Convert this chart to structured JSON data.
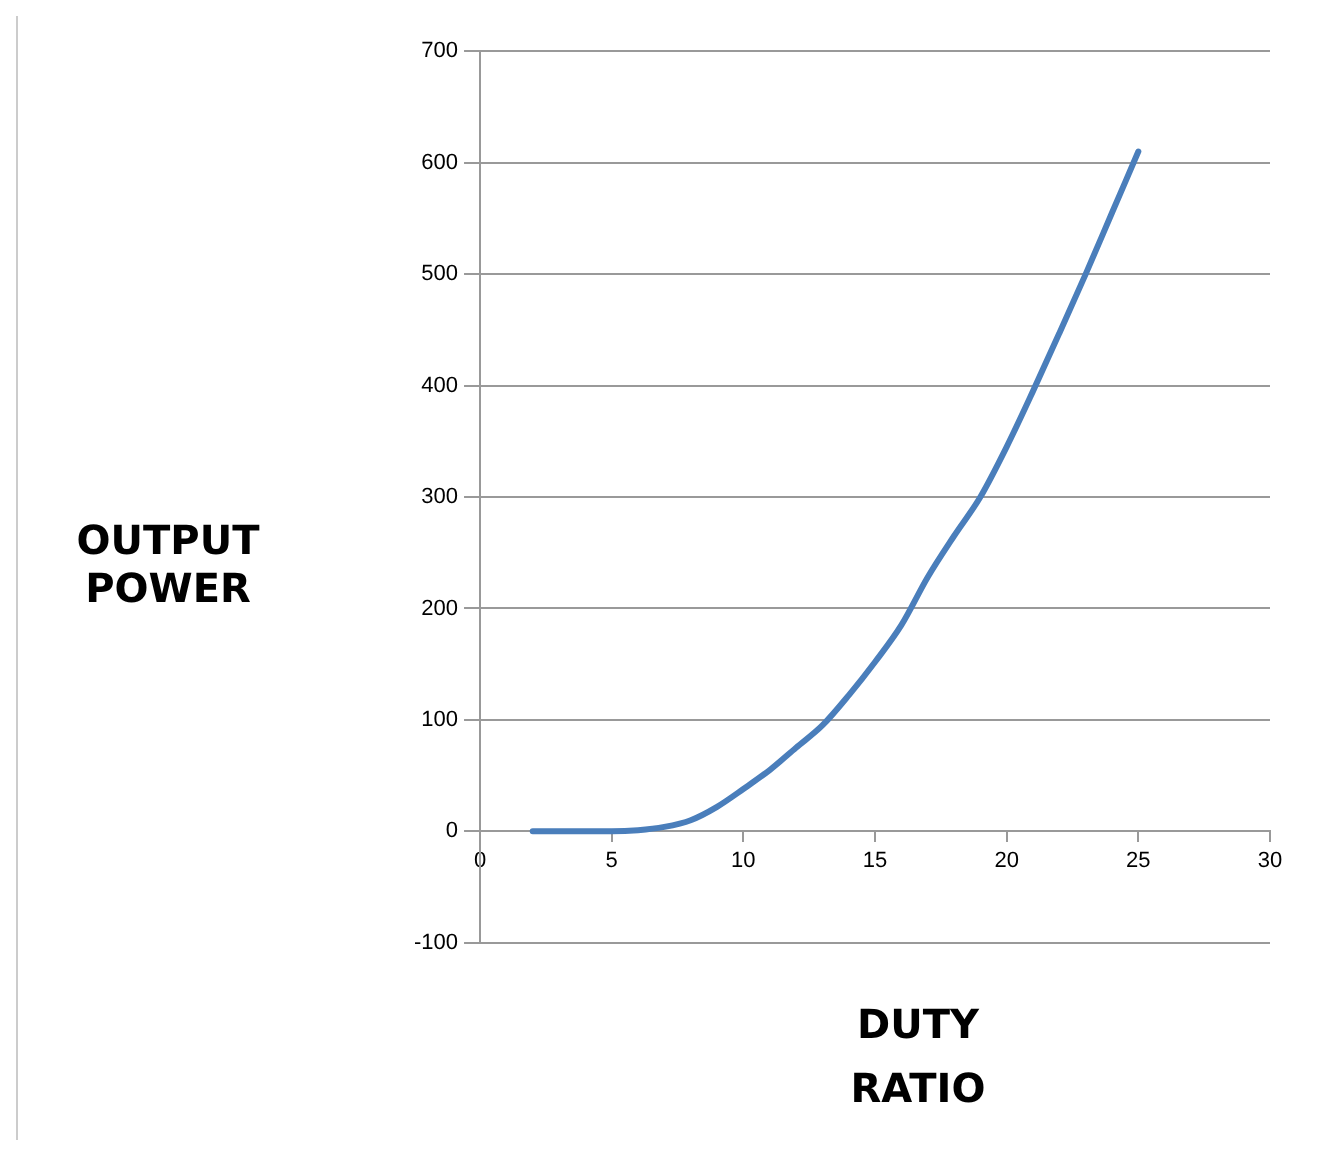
{
  "chart_data": {
    "type": "line",
    "xlabel": "DUTY RATIO",
    "ylabel": "OUTPUT POWER",
    "x": [
      2,
      5,
      6,
      7,
      8,
      9,
      10,
      11,
      12,
      13,
      14,
      15,
      16,
      17,
      18,
      19,
      20,
      21,
      22,
      23,
      24,
      25
    ],
    "series": [
      {
        "color": "#4a7ebb",
        "values": [
          0,
          0,
          1,
          4,
          10,
          22,
          38,
          55,
          75,
          95,
          122,
          152,
          185,
          228,
          265,
          300,
          345,
          395,
          447,
          500,
          555,
          610
        ]
      }
    ],
    "xlim": [
      0,
      30
    ],
    "xticks": [
      0,
      5,
      10,
      15,
      20,
      25,
      30
    ],
    "ylim": [
      -100,
      700
    ],
    "yticks": [
      -100,
      0,
      100,
      200,
      300,
      400,
      500,
      600,
      700
    ],
    "grid": "y",
    "legend": false,
    "marker": "none",
    "line_style": "solid"
  }
}
